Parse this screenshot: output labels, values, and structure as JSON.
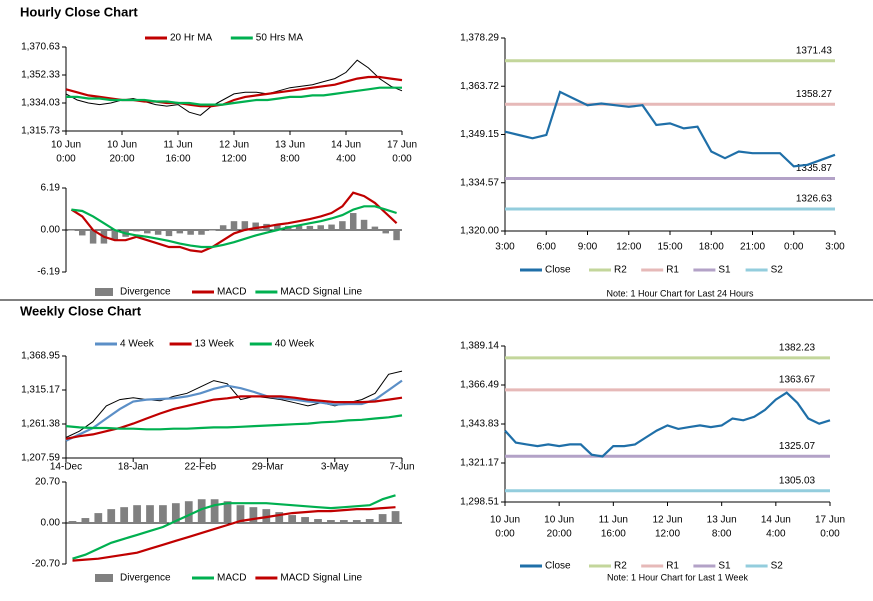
{
  "chart_data": [
    {
      "type": "line",
      "title": "Hourly Close Chart",
      "x": [
        0,
        4,
        8,
        12,
        16,
        20,
        24,
        28,
        32,
        36,
        40,
        44,
        48,
        52,
        56,
        60,
        64,
        68,
        72,
        76,
        80,
        84,
        88,
        92,
        96,
        100,
        104,
        108,
        112,
        116,
        120
      ],
      "xlim": [
        0,
        120
      ],
      "xticks": [
        {
          "value": 0,
          "label": "10 Jun",
          "sublabel": "0:00"
        },
        {
          "value": 20,
          "label": "10 Jun",
          "sublabel": "20:00"
        },
        {
          "value": 40,
          "label": "11 Jun",
          "sublabel": "16:00"
        },
        {
          "value": 60,
          "label": "12 Jun",
          "sublabel": "12:00"
        },
        {
          "value": 80,
          "label": "13 Jun",
          "sublabel": "8:00"
        },
        {
          "value": 100,
          "label": "14 Jun",
          "sublabel": "4:00"
        },
        {
          "value": 120,
          "label": "17 Jun",
          "sublabel": "0:00"
        }
      ],
      "ylim": [
        1315.73,
        1370.63
      ],
      "yticks": [
        {
          "value": 1315.73,
          "label": "1,315.73"
        },
        {
          "value": 1334.03,
          "label": "1,334.03"
        },
        {
          "value": 1352.33,
          "label": "1,352.33"
        },
        {
          "value": 1370.63,
          "label": "1,370.63"
        }
      ],
      "series": [
        {
          "color": "#000000",
          "values": [
            1340,
            1336,
            1334,
            1333,
            1334,
            1336,
            1337,
            1335,
            1333,
            1332,
            1333,
            1328,
            1326,
            1332,
            1336,
            1340,
            1341,
            1341,
            1340,
            1342,
            1344,
            1345,
            1346,
            1348,
            1350,
            1354,
            1362,
            1357,
            1350,
            1345,
            1342
          ]
        },
        {
          "name": "20 Hr MA",
          "color": "#c00000",
          "values": [
            1343,
            1341,
            1339,
            1338,
            1337,
            1336,
            1336,
            1335,
            1335,
            1334,
            1334,
            1333,
            1332,
            1332,
            1333,
            1336,
            1338,
            1339,
            1340,
            1341,
            1342,
            1343,
            1344,
            1345,
            1346,
            1348,
            1350,
            1351,
            1351,
            1350,
            1349
          ]
        },
        {
          "name": "50 Hrs MA",
          "color": "#00b050",
          "values": [
            1338,
            1338,
            1337,
            1337,
            1336,
            1336,
            1336,
            1336,
            1335,
            1335,
            1334,
            1334,
            1333,
            1333,
            1333,
            1334,
            1335,
            1336,
            1336,
            1337,
            1338,
            1338,
            1339,
            1339,
            1340,
            1341,
            1342,
            1343,
            1344,
            1344,
            1344
          ]
        }
      ]
    },
    {
      "type": "combo",
      "ylim": [
        -6.19,
        6.19
      ],
      "yticks": [
        -6.19,
        {
          "value": 0,
          "label": "0.00"
        },
        6.19
      ],
      "series": [
        {
          "name": "Divergence",
          "kind": "bar",
          "color": "#808080",
          "values": [
            0,
            -0.8,
            -2,
            -2,
            -1.5,
            -1,
            -0.2,
            -0.5,
            -0.7,
            -0.9,
            -0.5,
            -0.7,
            -0.7,
            0,
            0.7,
            1.3,
            1.3,
            1.1,
            0.9,
            0.8,
            0.6,
            0.6,
            0.6,
            0.7,
            0.8,
            1.3,
            2.5,
            1.5,
            0.5,
            -0.5,
            -1.5
          ]
        },
        {
          "name": "MACD",
          "color": "#c00000",
          "values": [
            3,
            2,
            0,
            -1,
            -1.5,
            -1.5,
            -1,
            -1.5,
            -2,
            -2.5,
            -2.5,
            -3,
            -3.2,
            -2.5,
            -1.5,
            -0.5,
            0,
            0.3,
            0.5,
            0.8,
            1,
            1.3,
            1.6,
            2,
            2.5,
            3.5,
            5.5,
            5,
            4,
            2.5,
            1
          ]
        },
        {
          "name": "MACD Signal Line",
          "color": "#00b050",
          "values": [
            3,
            2.8,
            2,
            1,
            0,
            -0.5,
            -0.8,
            -1,
            -1.3,
            -1.6,
            -2,
            -2.3,
            -2.5,
            -2.5,
            -2.2,
            -1.8,
            -1.3,
            -0.8,
            -0.4,
            0,
            0.4,
            0.7,
            1,
            1.3,
            1.7,
            2.2,
            3,
            3.5,
            3.5,
            3,
            2.5
          ]
        }
      ]
    },
    {
      "type": "line",
      "note": "Note: 1 Hour Chart for Last 24 Hours",
      "categories": [
        "3:00",
        null,
        null,
        "6:00",
        null,
        null,
        "9:00",
        null,
        null,
        "12:00",
        null,
        null,
        "15:00",
        null,
        null,
        "18:00",
        null,
        null,
        "21:00",
        null,
        null,
        "0:00",
        null,
        null,
        "3:00"
      ],
      "ylim": [
        1320.0,
        1378.29
      ],
      "yticks": [
        {
          "value": 1320,
          "label": "1,320.00"
        },
        {
          "value": 1334.57,
          "label": "1,334.57"
        },
        {
          "value": 1349.15,
          "label": "1,349.15"
        },
        {
          "value": 1363.72,
          "label": "1,363.72"
        },
        {
          "value": 1378.29,
          "label": "1,378.29"
        }
      ],
      "series": [
        {
          "name": "Close",
          "color": "#1f6fa8",
          "values": [
            1350,
            1349,
            1348,
            1349,
            1362,
            1360,
            1358,
            1358.5,
            1358,
            1357.5,
            1358,
            1352,
            1352.5,
            1351,
            1351.5,
            1344,
            1342,
            1344,
            1343.5,
            1343.5,
            1343.5,
            1339.5,
            1340,
            1341.5,
            1343
          ]
        }
      ],
      "levels": [
        {
          "name": "R2",
          "value": 1371.43,
          "color": "#c3d69b"
        },
        {
          "name": "R1",
          "value": 1358.27,
          "color": "#e6b9b8"
        },
        {
          "name": "S1",
          "value": 1335.87,
          "color": "#b3a2c7"
        },
        {
          "name": "S2",
          "value": 1326.63,
          "color": "#93cddd"
        }
      ]
    },
    {
      "type": "line",
      "title": "Weekly Close Chart",
      "categories": [
        "14-Dec",
        null,
        null,
        null,
        null,
        "18-Jan",
        null,
        null,
        null,
        null,
        "22-Feb",
        null,
        null,
        null,
        null,
        "29-Mar",
        null,
        null,
        null,
        null,
        "3-May",
        null,
        null,
        null,
        null,
        "7-Jun"
      ],
      "ylim": [
        1207.59,
        1368.95
      ],
      "yticks": [
        {
          "value": 1207.59,
          "label": "1,207.59"
        },
        {
          "value": 1261.38,
          "label": "1,261.38"
        },
        {
          "value": 1315.17,
          "label": "1,315.17"
        },
        {
          "value": 1368.95,
          "label": "1,368.95"
        }
      ],
      "series": [
        {
          "color": "#000000",
          "values": [
            1240,
            1250,
            1265,
            1290,
            1300,
            1303,
            1300,
            1298,
            1305,
            1310,
            1320,
            1330,
            1325,
            1300,
            1305,
            1303,
            1300,
            1295,
            1290,
            1295,
            1290,
            1295,
            1300,
            1310,
            1340,
            1345
          ]
        },
        {
          "name": "4 Week",
          "color": "#5b8fc7",
          "values": [
            1235,
            1245,
            1255,
            1270,
            1285,
            1297,
            1300,
            1301,
            1302,
            1305,
            1310,
            1317,
            1322,
            1318,
            1312,
            1305,
            1302,
            1300,
            1297,
            1295,
            1292,
            1293,
            1293,
            1300,
            1315,
            1330
          ]
        },
        {
          "name": "13 Week",
          "color": "#c00000",
          "values": [
            1238,
            1242,
            1245,
            1250,
            1255,
            1262,
            1270,
            1278,
            1285,
            1290,
            1295,
            1300,
            1302,
            1305,
            1305,
            1305,
            1305,
            1303,
            1300,
            1298,
            1296,
            1296,
            1296,
            1297,
            1300,
            1303
          ]
        },
        {
          "name": "40 Week",
          "color": "#00b050",
          "values": [
            1258,
            1256,
            1255,
            1255,
            1254,
            1254,
            1253,
            1253,
            1254,
            1254,
            1255,
            1256,
            1256,
            1257,
            1258,
            1259,
            1260,
            1261,
            1262,
            1264,
            1265,
            1267,
            1268,
            1270,
            1272,
            1275
          ]
        }
      ]
    },
    {
      "type": "combo",
      "ylim": [
        -20.7,
        20.7
      ],
      "yticks": [
        {
          "value": -20.7,
          "label": "-20.70"
        },
        {
          "value": 0,
          "label": "0.00"
        },
        {
          "value": 20.7,
          "label": "20.70"
        }
      ],
      "series": [
        {
          "name": "Divergence",
          "kind": "bar",
          "color": "#808080",
          "values": [
            1,
            2.5,
            5,
            7,
            8,
            9,
            9,
            9,
            10,
            11,
            12,
            12,
            11,
            9,
            8,
            7,
            5.5,
            4,
            3,
            2,
            1.5,
            1.5,
            1.5,
            2,
            4.5,
            6
          ]
        },
        {
          "name": "MACD",
          "color": "#00b050",
          "values": [
            -18,
            -16,
            -13,
            -10,
            -8,
            -6,
            -4,
            -2,
            1,
            4,
            7,
            9,
            10,
            10,
            10,
            10,
            9.5,
            9,
            8.5,
            8,
            7.5,
            8,
            8.5,
            9,
            12,
            14
          ]
        },
        {
          "name": "MACD Signal Line",
          "color": "#c00000",
          "values": [
            -19,
            -18.5,
            -18,
            -17,
            -16,
            -15,
            -13,
            -11,
            -9,
            -7,
            -5,
            -3,
            -1,
            1,
            2,
            3,
            4,
            5,
            5.5,
            6,
            6,
            6.5,
            7,
            7,
            7.5,
            8
          ]
        }
      ]
    },
    {
      "type": "line",
      "note": "Note: 1 Hour Chart for Last 1 Week",
      "x": [
        0,
        4,
        8,
        12,
        16,
        20,
        24,
        28,
        32,
        36,
        40,
        44,
        48,
        52,
        56,
        60,
        64,
        68,
        72,
        76,
        80,
        84,
        88,
        92,
        96,
        100,
        104,
        108,
        112,
        116,
        120
      ],
      "xlim": [
        0,
        120
      ],
      "xticks": [
        {
          "value": 0,
          "label": "10 Jun",
          "sublabel": "0:00"
        },
        {
          "value": 20,
          "label": "10 Jun",
          "sublabel": "20:00"
        },
        {
          "value": 40,
          "label": "11 Jun",
          "sublabel": "16:00"
        },
        {
          "value": 60,
          "label": "12 Jun",
          "sublabel": "12:00"
        },
        {
          "value": 80,
          "label": "13 Jun",
          "sublabel": "8:00"
        },
        {
          "value": 100,
          "label": "14 Jun",
          "sublabel": "4:00"
        },
        {
          "value": 120,
          "label": "17 Jun",
          "sublabel": "0:00"
        }
      ],
      "ylim": [
        1298.51,
        1389.14
      ],
      "yticks": [
        {
          "value": 1298.51,
          "label": "1,298.51"
        },
        {
          "value": 1321.17,
          "label": "1,321.17"
        },
        {
          "value": 1343.83,
          "label": "1,343.83"
        },
        {
          "value": 1366.49,
          "label": "1,366.49"
        },
        {
          "value": 1389.14,
          "label": "1,389.14"
        }
      ],
      "series": [
        {
          "name": "Close",
          "color": "#1f6fa8",
          "values": [
            1340,
            1333,
            1332,
            1331,
            1332,
            1331,
            1332,
            1332,
            1326,
            1325,
            1331,
            1331,
            1332,
            1336,
            1340,
            1343,
            1341,
            1342,
            1343,
            1342,
            1343,
            1347,
            1346,
            1348,
            1352,
            1358,
            1362,
            1356,
            1347,
            1344,
            1346
          ]
        }
      ],
      "levels": [
        {
          "name": "R2",
          "value": 1382.23,
          "color": "#c3d69b"
        },
        {
          "name": "R1",
          "value": 1363.67,
          "color": "#e6b9b8"
        },
        {
          "name": "S1",
          "value": 1325.07,
          "color": "#b3a2c7"
        },
        {
          "name": "S2",
          "value": 1305.03,
          "color": "#93cddd"
        }
      ]
    }
  ]
}
